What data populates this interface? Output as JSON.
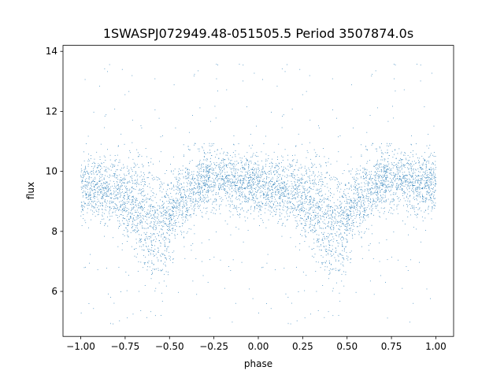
{
  "chart_data": {
    "type": "scatter",
    "title": "1SWASPJ072949.48-051505.5 Period 3507874.0s",
    "xlabel": "phase",
    "ylabel": "flux",
    "xlim": [
      -1.1,
      1.1
    ],
    "ylim": [
      4.5,
      14.2
    ],
    "x_ticks": [
      -1.0,
      -0.75,
      -0.5,
      -0.25,
      0.0,
      0.25,
      0.5,
      0.75,
      1.0
    ],
    "x_tick_labels": [
      "−1.00",
      "−0.75",
      "−0.50",
      "−0.25",
      "0.00",
      "0.25",
      "0.50",
      "0.75",
      "1.00"
    ],
    "y_ticks": [
      6,
      8,
      10,
      12,
      14
    ],
    "y_tick_labels": [
      "6",
      "8",
      "10",
      "12",
      "14"
    ],
    "grid": false,
    "legend": "none",
    "point_color": "#1f77b4",
    "series": [
      {
        "phase_folded": true,
        "profile": {
          "phase": [
            0.0,
            0.05,
            0.1,
            0.15,
            0.2,
            0.25,
            0.3,
            0.35,
            0.4,
            0.45,
            0.5,
            0.55,
            0.6,
            0.65,
            0.7,
            0.75,
            0.8,
            0.85,
            0.9,
            0.95,
            1.0
          ],
          "flux": [
            9.5,
            9.4,
            9.4,
            9.3,
            9.3,
            9.0,
            8.8,
            8.6,
            8.3,
            8.0,
            8.5,
            8.9,
            9.2,
            9.5,
            9.7,
            9.8,
            9.8,
            9.7,
            9.6,
            9.6,
            9.5
          ],
          "scatter": [
            0.5,
            0.5,
            0.5,
            0.6,
            0.6,
            0.7,
            0.8,
            0.9,
            0.9,
            0.9,
            0.7,
            0.6,
            0.6,
            0.5,
            0.5,
            0.5,
            0.5,
            0.5,
            0.5,
            0.5,
            0.5
          ]
        },
        "n_points": 6000,
        "y_min": 4.9,
        "y_max": 13.6
      }
    ]
  }
}
